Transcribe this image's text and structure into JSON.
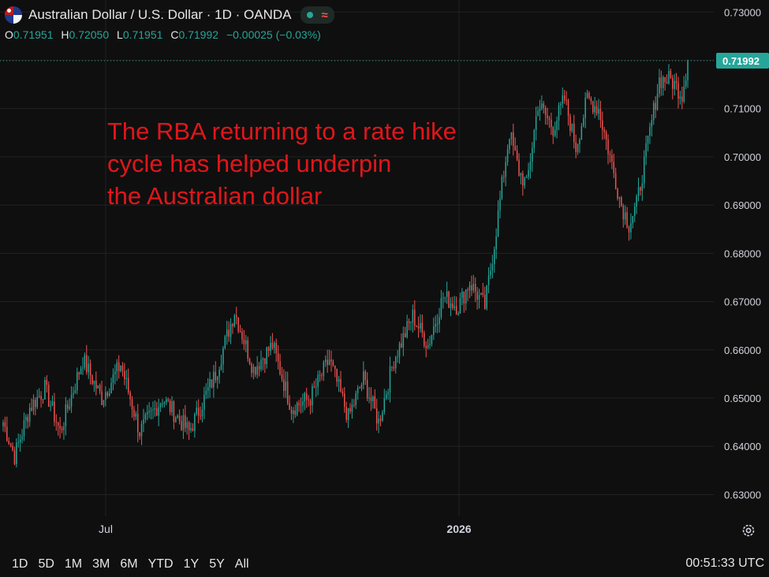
{
  "header": {
    "title": "Australian Dollar / U.S. Dollar · 1D · OANDA",
    "flag_icon": "aud-usd-flag-icon",
    "status_icon": "market-open-dot-icon",
    "wave_icon": "wave-icon",
    "ohlc": {
      "o_label": "O",
      "o_value": "0.71951",
      "h_label": "H",
      "h_value": "0.72050",
      "l_label": "L",
      "l_value": "0.71951",
      "c_label": "C",
      "c_value": "0.71992",
      "change": "−0.00025 (−0.03%)"
    }
  },
  "annotation": {
    "lines": [
      "The RBA returning to a rate hike",
      "cycle has helped underpin",
      "the Australian dollar"
    ],
    "color": "#e0161b"
  },
  "bottom_bar": {
    "ranges": [
      "1D",
      "5D",
      "1M",
      "3M",
      "6M",
      "YTD",
      "1Y",
      "5Y",
      "All"
    ],
    "clock": "00:51:33 UTC",
    "settings_icon": "gear-icon"
  },
  "colors": {
    "background": "#0f0f0f",
    "grid": "#222222",
    "up": "#26a69a",
    "down": "#ef5350",
    "price_label_bg": "#26a69a"
  },
  "chart_data": {
    "type": "candlestick",
    "title": "Australian Dollar / U.S. Dollar · 1D · OANDA",
    "y_ticks": [
      "0.73000",
      "0.72000",
      "0.71000",
      "0.70000",
      "0.69000",
      "0.68000",
      "0.67000",
      "0.66000",
      "0.65000",
      "0.64000",
      "0.63000"
    ],
    "ylim": [
      0.6255,
      0.7325
    ],
    "x_ticks": [
      "Jul",
      "2026"
    ],
    "last_price": "0.71992",
    "grid": true,
    "price_path": [
      {
        "i": 0,
        "v": 0.645
      },
      {
        "i": 6,
        "v": 0.638
      },
      {
        "i": 14,
        "v": 0.648
      },
      {
        "i": 22,
        "v": 0.652
      },
      {
        "i": 30,
        "v": 0.643
      },
      {
        "i": 42,
        "v": 0.658
      },
      {
        "i": 52,
        "v": 0.65
      },
      {
        "i": 62,
        "v": 0.657
      },
      {
        "i": 72,
        "v": 0.643
      },
      {
        "i": 84,
        "v": 0.65
      },
      {
        "i": 98,
        "v": 0.643
      },
      {
        "i": 112,
        "v": 0.655
      },
      {
        "i": 122,
        "v": 0.668
      },
      {
        "i": 132,
        "v": 0.656
      },
      {
        "i": 142,
        "v": 0.661
      },
      {
        "i": 152,
        "v": 0.648
      },
      {
        "i": 162,
        "v": 0.65
      },
      {
        "i": 172,
        "v": 0.658
      },
      {
        "i": 182,
        "v": 0.646
      },
      {
        "i": 190,
        "v": 0.654
      },
      {
        "i": 198,
        "v": 0.645
      },
      {
        "i": 206,
        "v": 0.658
      },
      {
        "i": 216,
        "v": 0.667
      },
      {
        "i": 224,
        "v": 0.661
      },
      {
        "i": 232,
        "v": 0.671
      },
      {
        "i": 240,
        "v": 0.669
      },
      {
        "i": 246,
        "v": 0.674
      },
      {
        "i": 254,
        "v": 0.669
      },
      {
        "i": 259,
        "v": 0.682
      },
      {
        "i": 263,
        "v": 0.694
      },
      {
        "i": 267,
        "v": 0.705
      },
      {
        "i": 272,
        "v": 0.697
      },
      {
        "i": 276,
        "v": 0.694
      },
      {
        "i": 282,
        "v": 0.711
      },
      {
        "i": 290,
        "v": 0.706
      },
      {
        "i": 296,
        "v": 0.712
      },
      {
        "i": 302,
        "v": 0.702
      },
      {
        "i": 308,
        "v": 0.712
      },
      {
        "i": 314,
        "v": 0.71
      },
      {
        "i": 320,
        "v": 0.7
      },
      {
        "i": 326,
        "v": 0.69
      },
      {
        "i": 330,
        "v": 0.686
      },
      {
        "i": 334,
        "v": 0.69
      },
      {
        "i": 340,
        "v": 0.703
      },
      {
        "i": 346,
        "v": 0.716
      },
      {
        "i": 352,
        "v": 0.716
      },
      {
        "i": 358,
        "v": 0.713
      },
      {
        "i": 361,
        "v": 0.7199
      }
    ]
  }
}
